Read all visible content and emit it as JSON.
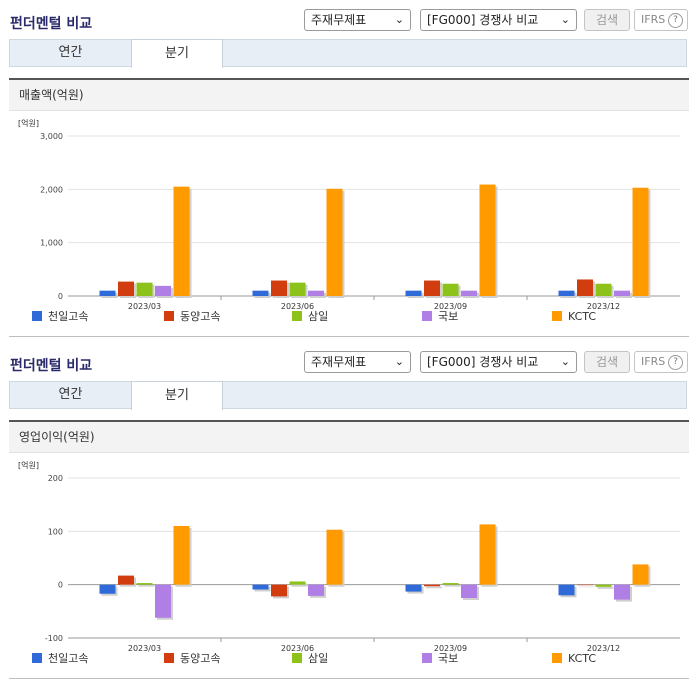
{
  "sections": [
    {
      "title": "펀더멘털 비교",
      "select1": "주재무제표",
      "select2": "[FG000] 경쟁사 비교",
      "search_label": "검색",
      "ifrs_label": "IFRS",
      "tabs": [
        "연간",
        "분기"
      ],
      "active_tab": 1,
      "panel_title": "매출액(억원)"
    },
    {
      "title": "펀더멘털 비교",
      "select1": "주재무제표",
      "select2": "[FG000] 경쟁사 비교",
      "search_label": "검색",
      "ifrs_label": "IFRS",
      "tabs": [
        "연간",
        "분기"
      ],
      "active_tab": 1,
      "panel_title": "영업이익(억원)"
    }
  ],
  "chart_data": [
    {
      "type": "bar",
      "unit_label": "[억원]",
      "categories": [
        "2023/03",
        "2023/06",
        "2023/09",
        "2023/12"
      ],
      "ylim": [
        0,
        3000
      ],
      "yticks": [
        0,
        1000,
        2000,
        3000
      ],
      "ytick_labels": [
        "0",
        "1,000",
        "2,000",
        "3,000"
      ],
      "grid": true,
      "legend_position": "bottom",
      "series": [
        {
          "name": "천일고속",
          "color": "#2f6bd8",
          "values": [
            100,
            100,
            100,
            100
          ]
        },
        {
          "name": "동양고속",
          "color": "#d23d0f",
          "values": [
            270,
            290,
            290,
            310
          ]
        },
        {
          "name": "삼일",
          "color": "#8cc21a",
          "values": [
            250,
            250,
            230,
            230
          ]
        },
        {
          "name": "국보",
          "color": "#b07fe6",
          "values": [
            190,
            100,
            100,
            100
          ]
        },
        {
          "name": "KCTC",
          "color": "#ff9a00",
          "values": [
            2050,
            2010,
            2090,
            2030
          ]
        }
      ]
    },
    {
      "type": "bar",
      "unit_label": "[억원]",
      "categories": [
        "2023/03",
        "2023/06",
        "2023/09",
        "2023/12"
      ],
      "ylim": [
        -100,
        200
      ],
      "yticks": [
        -100,
        0,
        100,
        200
      ],
      "ytick_labels": [
        "-100",
        "0",
        "100",
        "200"
      ],
      "grid": true,
      "legend_position": "bottom",
      "series": [
        {
          "name": "천일고속",
          "color": "#2f6bd8",
          "values": [
            -17,
            -9,
            -13,
            -20
          ]
        },
        {
          "name": "동양고속",
          "color": "#d23d0f",
          "values": [
            17,
            -22,
            -3,
            0
          ]
        },
        {
          "name": "삼일",
          "color": "#8cc21a",
          "values": [
            3,
            6,
            3,
            -4
          ]
        },
        {
          "name": "국보",
          "color": "#b07fe6",
          "values": [
            -62,
            -21,
            -25,
            -28
          ]
        },
        {
          "name": "KCTC",
          "color": "#ff9a00",
          "values": [
            110,
            103,
            113,
            38
          ]
        }
      ]
    }
  ]
}
